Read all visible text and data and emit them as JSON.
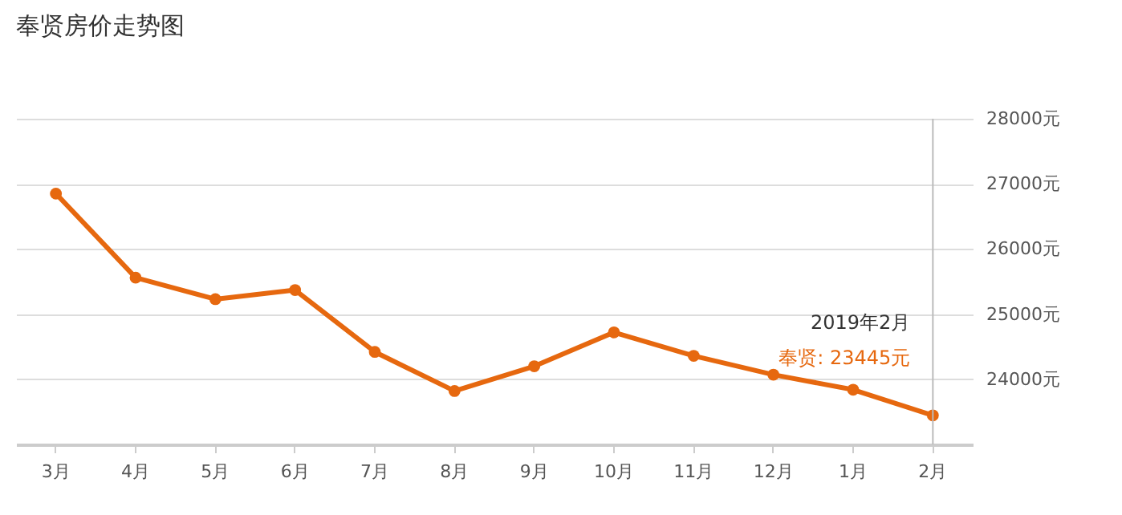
{
  "chart_data": {
    "type": "line",
    "title": "奉贤房价走势图",
    "categories": [
      "3月",
      "4月",
      "5月",
      "6月",
      "7月",
      "8月",
      "9月",
      "10月",
      "11月",
      "12月",
      "1月",
      "2月"
    ],
    "series": [
      {
        "color": "#e6680f",
        "values": [
          26850,
          25560,
          25230,
          25370,
          24420,
          23820,
          24200,
          24720,
          24360,
          24070,
          23840,
          23445
        ]
      }
    ],
    "ylim": [
      23000,
      28000
    ],
    "yticks": [
      {
        "value": 24000,
        "label": "24000元"
      },
      {
        "value": 25000,
        "label": "25000元"
      },
      {
        "value": 26000,
        "label": "26000元"
      },
      {
        "value": 27000,
        "label": "27000元"
      },
      {
        "value": 28000,
        "label": "28000元"
      }
    ],
    "grid": "y",
    "marker": "circle",
    "line_style": "solid",
    "ref_lines": [
      {
        "axis": "x",
        "value": "2月",
        "color": "#bbbbbb"
      }
    ],
    "annotations": [
      "2019年2月",
      "奉贤:  23445元"
    ]
  }
}
